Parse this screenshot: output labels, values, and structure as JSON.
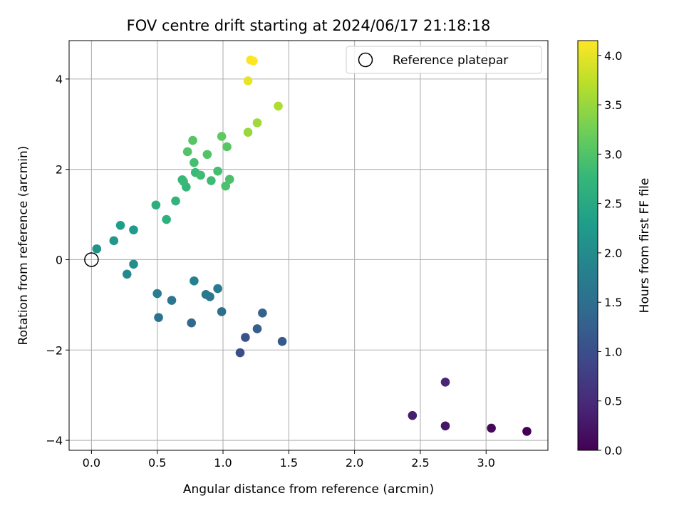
{
  "chart_data": {
    "type": "scatter",
    "title": "FOV centre drift starting at 2024/06/17 21:18:18",
    "xlabel": "Angular distance from reference (arcmin)",
    "ylabel": "Rotation from reference (arcmin)",
    "xlim": [
      -0.17,
      3.47
    ],
    "ylim": [
      -4.22,
      4.85
    ],
    "xticks": [
      0.0,
      0.5,
      1.0,
      1.5,
      2.0,
      2.5,
      3.0
    ],
    "xtick_labels": [
      "0.0",
      "0.5",
      "1.0",
      "1.5",
      "2.0",
      "2.5",
      "3.0"
    ],
    "yticks": [
      -4,
      -2,
      0,
      2,
      4
    ],
    "ytick_labels": [
      "−4",
      "−2",
      "0",
      "2",
      "4"
    ],
    "grid": true,
    "legend_position": "top-right",
    "reference": {
      "name": "Reference platepar",
      "x": 0.0,
      "y": 0.0
    },
    "colorbar": {
      "label": "Hours from first FF file",
      "colormap": "viridis",
      "range": [
        0.0,
        4.15
      ],
      "ticks": [
        0.0,
        0.5,
        1.0,
        1.5,
        2.0,
        2.5,
        3.0,
        3.5,
        4.0
      ],
      "tick_labels": [
        "0.0",
        "0.5",
        "1.0",
        "1.5",
        "2.0",
        "2.5",
        "3.0",
        "3.5",
        "4.0"
      ]
    },
    "points": [
      {
        "x": 3.31,
        "y": -3.8,
        "c": 0.0
      },
      {
        "x": 3.04,
        "y": -3.73,
        "c": 0.08
      },
      {
        "x": 2.69,
        "y": -3.68,
        "c": 0.25
      },
      {
        "x": 2.44,
        "y": -3.45,
        "c": 0.33
      },
      {
        "x": 2.69,
        "y": -2.71,
        "c": 0.42
      },
      {
        "x": 1.13,
        "y": -2.06,
        "c": 1.0
      },
      {
        "x": 1.17,
        "y": -1.72,
        "c": 1.08
      },
      {
        "x": 1.45,
        "y": -1.81,
        "c": 1.17
      },
      {
        "x": 1.26,
        "y": -1.53,
        "c": 1.25
      },
      {
        "x": 1.3,
        "y": -1.18,
        "c": 1.33
      },
      {
        "x": 0.76,
        "y": -1.4,
        "c": 1.42
      },
      {
        "x": 0.99,
        "y": -1.15,
        "c": 1.5
      },
      {
        "x": 0.51,
        "y": -1.28,
        "c": 1.58
      },
      {
        "x": 0.61,
        "y": -0.9,
        "c": 1.62
      },
      {
        "x": 0.9,
        "y": -0.82,
        "c": 1.67
      },
      {
        "x": 0.87,
        "y": -0.77,
        "c": 1.67
      },
      {
        "x": 0.96,
        "y": -0.64,
        "c": 1.72
      },
      {
        "x": 0.5,
        "y": -0.75,
        "c": 1.75
      },
      {
        "x": 0.78,
        "y": -0.47,
        "c": 1.83
      },
      {
        "x": 0.27,
        "y": -0.32,
        "c": 1.95
      },
      {
        "x": 0.32,
        "y": -0.1,
        "c": 2.05
      },
      {
        "x": 0.04,
        "y": 0.24,
        "c": 2.1
      },
      {
        "x": 0.17,
        "y": 0.42,
        "c": 2.2
      },
      {
        "x": 0.32,
        "y": 0.66,
        "c": 2.25
      },
      {
        "x": 0.22,
        "y": 0.76,
        "c": 2.3
      },
      {
        "x": 0.49,
        "y": 1.21,
        "c": 2.6
      },
      {
        "x": 0.57,
        "y": 0.89,
        "c": 2.65
      },
      {
        "x": 0.64,
        "y": 1.3,
        "c": 2.7
      },
      {
        "x": 0.72,
        "y": 1.61,
        "c": 2.75
      },
      {
        "x": 0.69,
        "y": 1.77,
        "c": 2.75
      },
      {
        "x": 0.7,
        "y": 1.73,
        "c": 2.8
      },
      {
        "x": 0.79,
        "y": 1.93,
        "c": 2.8
      },
      {
        "x": 0.83,
        "y": 1.87,
        "c": 2.85
      },
      {
        "x": 0.91,
        "y": 1.75,
        "c": 2.85
      },
      {
        "x": 0.78,
        "y": 2.15,
        "c": 2.9
      },
      {
        "x": 0.96,
        "y": 1.96,
        "c": 2.9
      },
      {
        "x": 1.05,
        "y": 1.78,
        "c": 2.95
      },
      {
        "x": 1.02,
        "y": 1.63,
        "c": 2.95
      },
      {
        "x": 0.73,
        "y": 2.39,
        "c": 3.0
      },
      {
        "x": 0.88,
        "y": 2.33,
        "c": 3.0
      },
      {
        "x": 0.77,
        "y": 2.64,
        "c": 3.05
      },
      {
        "x": 1.03,
        "y": 2.5,
        "c": 3.05
      },
      {
        "x": 0.99,
        "y": 2.73,
        "c": 3.1
      },
      {
        "x": 1.19,
        "y": 2.82,
        "c": 3.5
      },
      {
        "x": 1.26,
        "y": 3.03,
        "c": 3.55
      },
      {
        "x": 1.42,
        "y": 3.4,
        "c": 3.65
      },
      {
        "x": 1.19,
        "y": 3.96,
        "c": 4.0
      },
      {
        "x": 1.21,
        "y": 4.42,
        "c": 4.1
      },
      {
        "x": 1.23,
        "y": 4.4,
        "c": 4.15
      }
    ]
  }
}
